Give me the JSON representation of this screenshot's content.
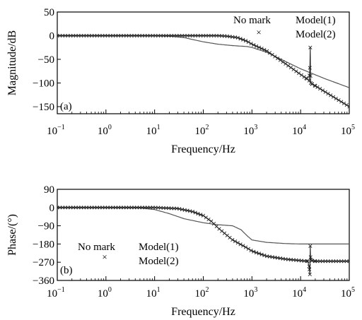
{
  "colors": {
    "model1": "#555555",
    "model2": "#222222",
    "axis": "#000000"
  },
  "chart_data": [
    {
      "type": "line",
      "panel_label": "(a)",
      "xlabel": "Frequency/Hz",
      "ylabel": "Magnitude/dB",
      "xscale": "log",
      "xlim": [
        0.1,
        100000
      ],
      "ylim": [
        -165,
        50
      ],
      "x_ticks": [
        {
          "value": 0.1,
          "base": "10",
          "exp": "−1"
        },
        {
          "value": 1,
          "base": "10",
          "exp": "0"
        },
        {
          "value": 10,
          "base": "10",
          "exp": "1"
        },
        {
          "value": 100,
          "base": "10",
          "exp": "2"
        },
        {
          "value": 1000,
          "base": "10",
          "exp": "3"
        },
        {
          "value": 10000,
          "base": "10",
          "exp": "4"
        },
        {
          "value": 100000,
          "base": "10",
          "exp": "5"
        }
      ],
      "y_ticks": [
        50,
        0,
        -50,
        -100,
        -150
      ],
      "y_tick_labels": [
        "50",
        "0",
        "−50",
        "−100",
        "−150"
      ],
      "legend": {
        "no_mark_label": "No mark",
        "marker_symbol": "×",
        "model1_label": "Model(1)",
        "model2_label": "Model(2)"
      },
      "series": [
        {
          "name": "Model(1)",
          "marker": "none",
          "x": [
            0.1,
            1,
            10,
            20,
            40,
            60,
            100,
            200,
            400,
            800,
            1000,
            2000,
            5000,
            10000,
            30000,
            100000
          ],
          "y": [
            0,
            0,
            0,
            -1,
            -4,
            -8,
            -13,
            -18,
            -21,
            -23,
            -25,
            -35,
            -55,
            -70,
            -90,
            -110
          ]
        },
        {
          "name": "Model(2)",
          "marker": "x",
          "x": [
            0.1,
            1,
            10,
            30,
            100,
            200,
            300,
            500,
            800,
            1000,
            2000,
            5000,
            10000,
            13000,
            15000,
            15500,
            15800,
            16000,
            16200,
            17000,
            20000,
            40000,
            100000
          ],
          "y": [
            0,
            0,
            0,
            0,
            0,
            0,
            -1,
            -4,
            -12,
            -18,
            -32,
            -60,
            -82,
            -90,
            -95,
            -68,
            -25,
            -85,
            -100,
            -102,
            -106,
            -125,
            -150
          ]
        }
      ]
    },
    {
      "type": "line",
      "panel_label": "(b)",
      "xlabel": "Frequency/Hz",
      "ylabel": "Phase/(°)",
      "xscale": "log",
      "xlim": [
        0.1,
        100000
      ],
      "ylim": [
        -360,
        90
      ],
      "x_ticks": [
        {
          "value": 0.1,
          "base": "10",
          "exp": "−1"
        },
        {
          "value": 1,
          "base": "10",
          "exp": "0"
        },
        {
          "value": 10,
          "base": "10",
          "exp": "1"
        },
        {
          "value": 100,
          "base": "10",
          "exp": "2"
        },
        {
          "value": 1000,
          "base": "10",
          "exp": "3"
        },
        {
          "value": 10000,
          "base": "10",
          "exp": "4"
        },
        {
          "value": 100000,
          "base": "10",
          "exp": "5"
        }
      ],
      "y_ticks": [
        90,
        0,
        -90,
        -180,
        -270,
        -360
      ],
      "y_tick_labels": [
        "90",
        "0",
        "−90",
        "−180",
        "−270",
        "−360"
      ],
      "legend": {
        "no_mark_label": "No mark",
        "marker_symbol": "×",
        "model1_label": "Model(1)",
        "model2_label": "Model(2)"
      },
      "series": [
        {
          "name": "Model(1)",
          "marker": "none",
          "x": [
            0.1,
            1,
            5,
            10,
            20,
            40,
            100,
            200,
            400,
            600,
            800,
            1000,
            2000,
            5000,
            10000,
            100000
          ],
          "y": [
            0,
            0,
            -2,
            -10,
            -30,
            -55,
            -75,
            -85,
            -90,
            -110,
            -140,
            -160,
            -172,
            -178,
            -180,
            -180
          ]
        },
        {
          "name": "Model(2)",
          "marker": "x",
          "x": [
            0.1,
            1,
            10,
            30,
            60,
            100,
            150,
            200,
            400,
            800,
            1000,
            2000,
            5000,
            10000,
            14000,
            15000,
            15500,
            15800,
            16000,
            16300,
            17000,
            20000,
            100000
          ],
          "y": [
            0,
            0,
            0,
            -5,
            -20,
            -40,
            -70,
            -100,
            -160,
            -200,
            -215,
            -240,
            -255,
            -262,
            -265,
            -290,
            -330,
            -190,
            -245,
            -258,
            -262,
            -265,
            -265
          ]
        }
      ]
    }
  ]
}
